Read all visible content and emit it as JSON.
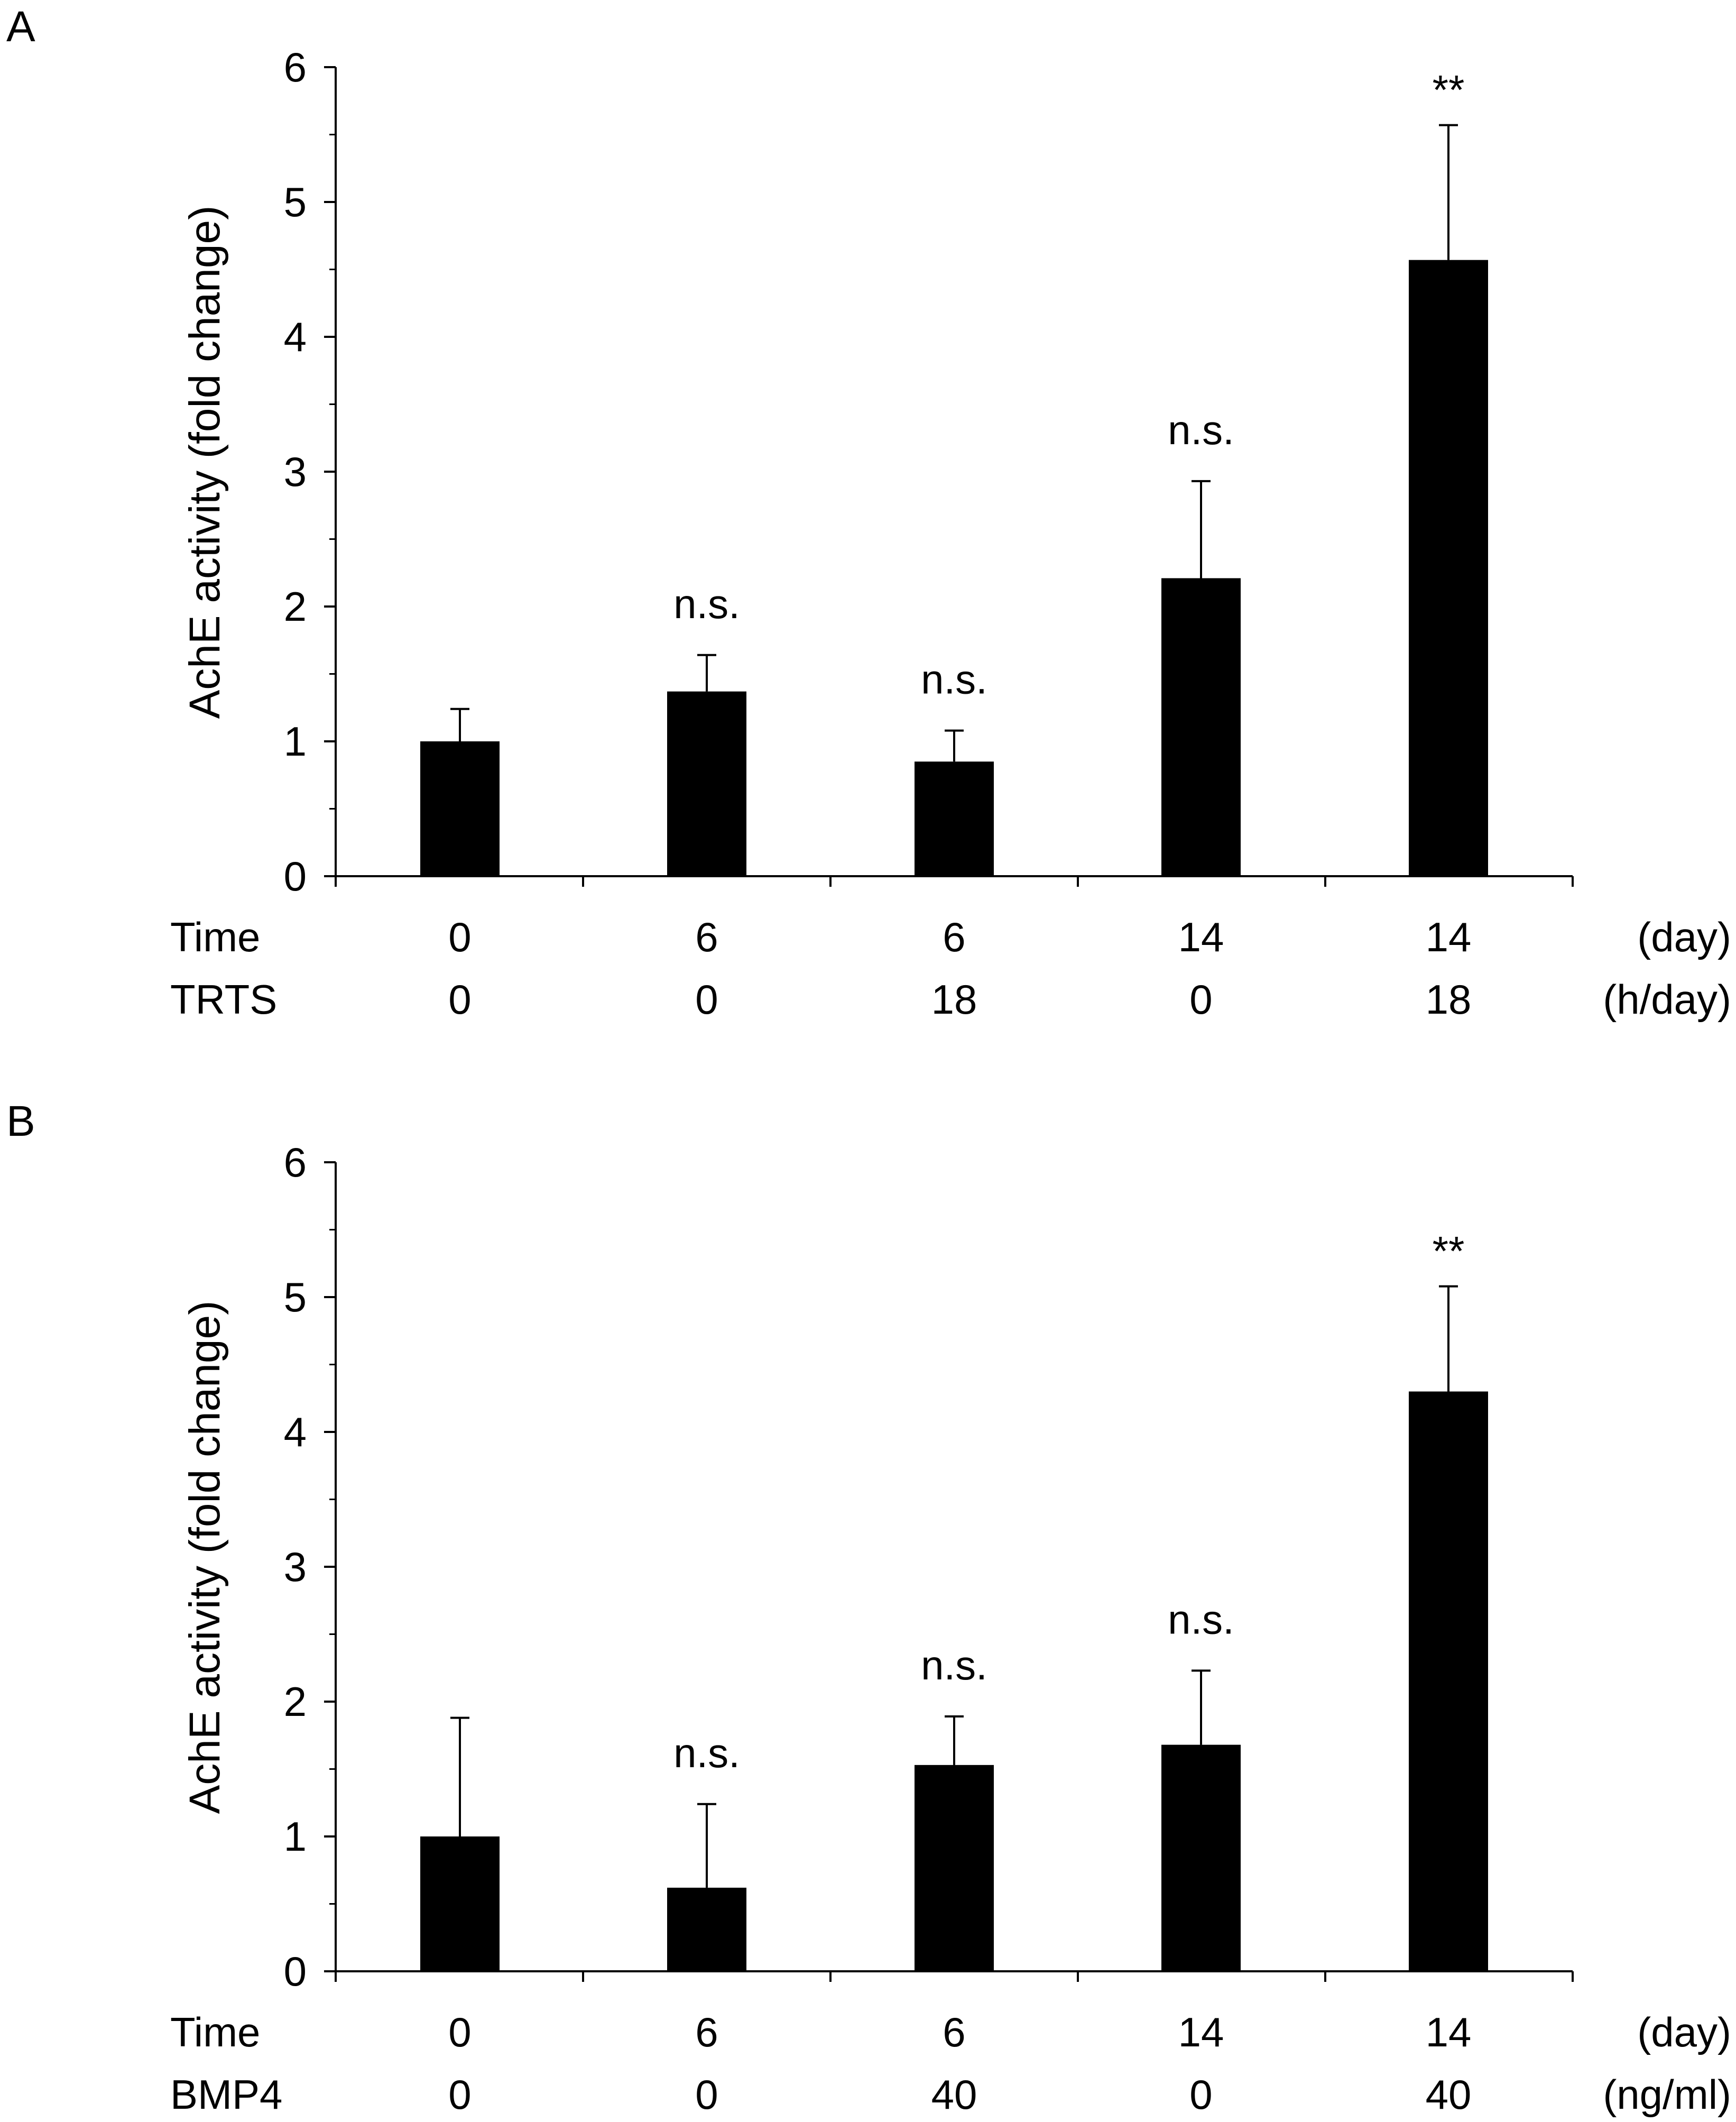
{
  "colors": {
    "bar": "#000000",
    "axis": "#000000",
    "background": "#ffffff"
  },
  "chart_data": [
    {
      "panel": "A",
      "type": "bar",
      "ylabel": "AchE activity (fold change)",
      "ylim": [
        0,
        6
      ],
      "yticks": [
        "0",
        "1",
        "2",
        "3",
        "4",
        "5",
        "6"
      ],
      "values": [
        1.0,
        1.37,
        0.85,
        2.21,
        4.57
      ],
      "error": [
        0.24,
        0.27,
        0.23,
        0.72,
        1.0
      ],
      "annotations": [
        "",
        "n.s.",
        "n.s.",
        "n.s.",
        "**"
      ],
      "condition_rows": [
        {
          "label": "Time",
          "values": [
            "0",
            "6",
            "6",
            "14",
            "14"
          ],
          "unit": "(day)"
        },
        {
          "label": "TRTS",
          "values": [
            "0",
            "0",
            "18",
            "0",
            "18"
          ],
          "unit": "(h/day)"
        }
      ]
    },
    {
      "panel": "B",
      "type": "bar",
      "ylabel": "AchE activity (fold change)",
      "ylim": [
        0,
        6
      ],
      "yticks": [
        "0",
        "1",
        "2",
        "3",
        "4",
        "5",
        "6"
      ],
      "values": [
        1.0,
        0.62,
        1.53,
        1.68,
        4.3
      ],
      "error": [
        0.88,
        0.62,
        0.36,
        0.55,
        0.78
      ],
      "annotations": [
        "",
        "n.s.",
        "n.s.",
        "n.s.",
        "**"
      ],
      "condition_rows": [
        {
          "label": "Time",
          "values": [
            "0",
            "6",
            "6",
            "14",
            "14"
          ],
          "unit": "(day)"
        },
        {
          "label": "BMP4",
          "values": [
            "0",
            "0",
            "40",
            "0",
            "40"
          ],
          "unit": "(ng/ml)"
        }
      ]
    }
  ]
}
